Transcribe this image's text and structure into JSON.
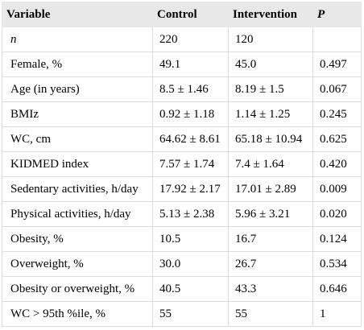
{
  "headers": [
    "Variable",
    "Control",
    "Intervention",
    "P"
  ],
  "rows": [
    [
      "n",
      "220",
      "120",
      ""
    ],
    [
      "Female, %",
      "49.1",
      "45.0",
      "0.497"
    ],
    [
      "Age (in years)",
      "8.5 ± 1.46",
      "8.19 ± 1.5",
      "0.067"
    ],
    [
      "BMIz",
      "0.92 ± 1.18",
      "1.14 ± 1.25",
      "0.245"
    ],
    [
      "WC, cm",
      "64.62 ± 8.61",
      "65.18 ± 10.94",
      "0.625"
    ],
    [
      "KIDMED index",
      "7.57 ± 1.74",
      "7.4 ± 1.64",
      "0.420"
    ],
    [
      "Sedentary activities, h/day",
      "17.92 ± 2.17",
      "17.01 ± 2.89",
      "0.009"
    ],
    [
      "Physical activities, h/day",
      "5.13 ± 2.38",
      "5.96 ± 3.21",
      "0.020"
    ],
    [
      "Obesity, %",
      "10.5",
      "16.7",
      "0.124"
    ],
    [
      "Overweight, %",
      "30.0",
      "26.7",
      "0.534"
    ],
    [
      "Obesity or overweight, %",
      "40.5",
      "43.3",
      "0.646"
    ],
    [
      "WC > 95th %ile, %",
      "55",
      "55",
      "1"
    ]
  ]
}
